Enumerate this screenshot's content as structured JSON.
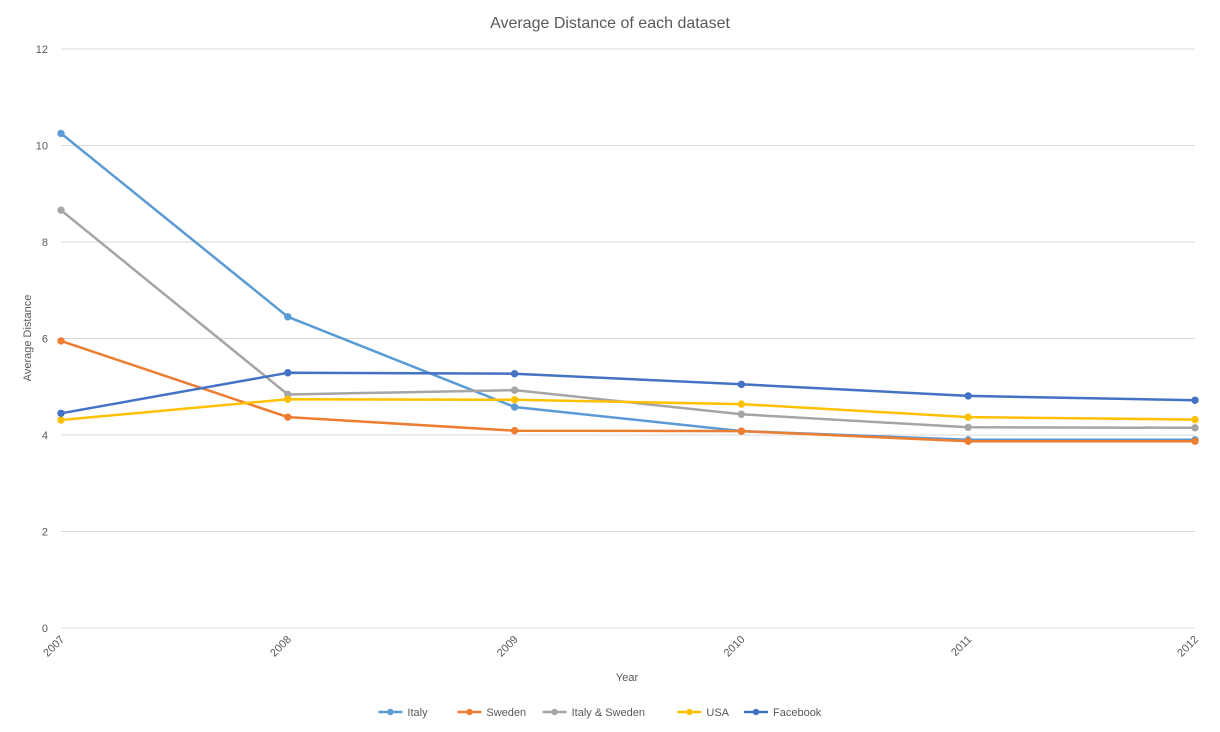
{
  "chart_data": {
    "type": "line",
    "title": "Average Distance of each dataset",
    "xlabel": "Year",
    "ylabel": "Average Distance",
    "x": [
      "2007",
      "2008",
      "2009",
      "2010",
      "2011",
      "2012"
    ],
    "ylim": [
      0,
      12
    ],
    "yticks": [
      0,
      2,
      4,
      6,
      8,
      10,
      12
    ],
    "grid": true,
    "legend_position": "bottom",
    "series": [
      {
        "name": "Italy",
        "color": "#5b9bd5",
        "values": [
          10.25,
          6.45,
          4.58,
          4.08,
          3.9,
          3.9
        ]
      },
      {
        "name": "Sweden",
        "color": "#ed7d31",
        "values": [
          5.95,
          4.37,
          4.09,
          4.08,
          3.87,
          3.87
        ]
      },
      {
        "name": "Italy & Sweden",
        "color": "#a5a5a5",
        "values": [
          8.66,
          4.84,
          4.93,
          4.43,
          4.16,
          4.15
        ]
      },
      {
        "name": "USA",
        "color": "#ffc000",
        "values": [
          4.31,
          4.74,
          4.73,
          4.64,
          4.37,
          4.32
        ]
      },
      {
        "name": "Facebook",
        "color": "#4472c4",
        "values": [
          4.45,
          5.29,
          5.27,
          5.05,
          4.81,
          4.72
        ]
      }
    ]
  }
}
